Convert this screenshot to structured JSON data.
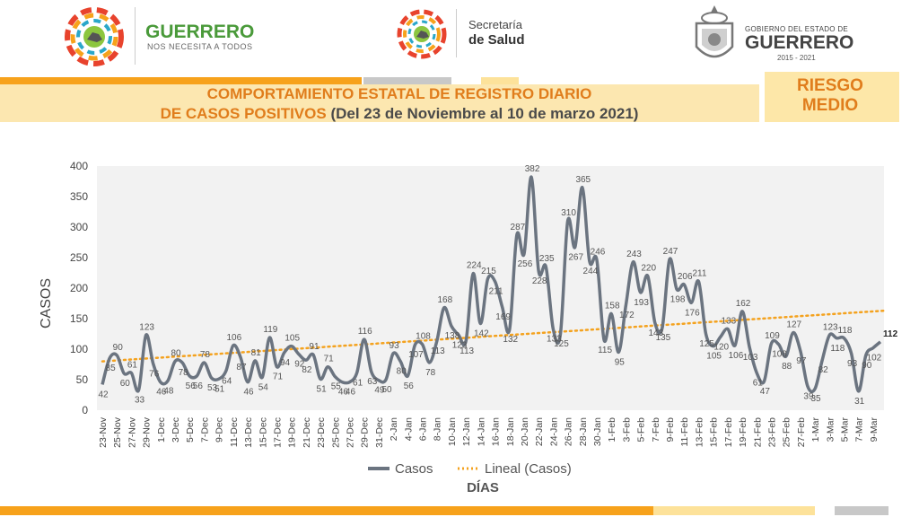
{
  "header": {
    "brand_left_title": "GUERRERO",
    "brand_left_subtitle": "NOS NECESITA A TODOS",
    "brand_mid_line1": "Secretaría",
    "brand_mid_line2": "de Salud",
    "brand_right_line1": "GOBIERNO DEL ESTADO DE",
    "brand_right_line2": "GUERRERO",
    "brand_right_line3": "2015 - 2021",
    "colors": {
      "orange": "#f7a21b",
      "gray": "#c8c8c8",
      "yellow": "#fde29a",
      "green": "#4a9a3a",
      "darkgray": "#555555"
    }
  },
  "title": {
    "line1": "COMPORTAMIENTO ESTATAL DE REGISTRO DIARIO",
    "line2_bold": "DE CASOS POSITIVOS",
    "line2_rest": " (Del 23 de Noviembre al 10 de marzo 2021)"
  },
  "risk": {
    "line1": "RIESGO",
    "line2": "MEDIO"
  },
  "chart_data": {
    "type": "line",
    "title": "",
    "ylabel": "CASOS",
    "xlabel": "DÍAS",
    "ylim": [
      0,
      400
    ],
    "yticks": [
      0,
      50,
      100,
      150,
      200,
      250,
      300,
      350,
      400
    ],
    "legend": {
      "position": "bottom",
      "entries": [
        "Casos",
        "Lineal (Casos)"
      ]
    },
    "grid": false,
    "x_tick_labels": [
      "23-Nov",
      "25-Nov",
      "27-Nov",
      "29-Nov",
      "1-Dec",
      "3-Dec",
      "5-Dec",
      "7-Dec",
      "9-Dec",
      "11-Dec",
      "13-Dec",
      "15-Dec",
      "17-Dec",
      "19-Dec",
      "21-Dec",
      "23-Dec",
      "25-Dec",
      "27-Dec",
      "29-Dec",
      "31-Dec",
      "2-Jan",
      "4-Jan",
      "6-Jan",
      "8-Jan",
      "10-Jan",
      "12-Jan",
      "14-Jan",
      "16-Jan",
      "18-Jan",
      "20-Jan",
      "22-Jan",
      "24-Jan",
      "26-Jan",
      "28-Jan",
      "30-Jan",
      "1-Feb",
      "3-Feb",
      "5-Feb",
      "7-Feb",
      "9-Feb",
      "11-Feb",
      "13-Feb",
      "15-Feb",
      "17-Feb",
      "19-Feb",
      "21-Feb",
      "23-Feb",
      "25-Feb",
      "27-Feb",
      "1-Mar",
      "3-Mar",
      "5-Mar",
      "7-Mar",
      "9-Mar"
    ],
    "series": [
      {
        "name": "Casos",
        "color": "#6b7480",
        "values": [
          42,
          85,
          90,
          60,
          61,
          33,
          123,
          76,
          46,
          48,
          80,
          78,
          56,
          56,
          78,
          53,
          51,
          64,
          106,
          87,
          46,
          81,
          54,
          119,
          71,
          94,
          105,
          92,
          82,
          91,
          51,
          71,
          55,
          46,
          46,
          61,
          116,
          63,
          49,
          50,
          93,
          80,
          56,
          107,
          108,
          78,
          113,
          168,
          138,
          123,
          113,
          224,
          142,
          215,
          211,
          169,
          132,
          287,
          256,
          382,
          228,
          235,
          133,
          125,
          310,
          267,
          365,
          244,
          246,
          115,
          158,
          95,
          172,
          243,
          193,
          220,
          143,
          135,
          247,
          198,
          206,
          176,
          211,
          125,
          105,
          120,
          133,
          106,
          162,
          103,
          61,
          47,
          109,
          108,
          88,
          127,
          97,
          39,
          35,
          82,
          123,
          118,
          118,
          93,
          31,
          90,
          102,
          112
        ]
      },
      {
        "name": "Lineal (Casos)",
        "color": "#f4a21e",
        "trend": [
          80,
          163
        ]
      }
    ]
  }
}
